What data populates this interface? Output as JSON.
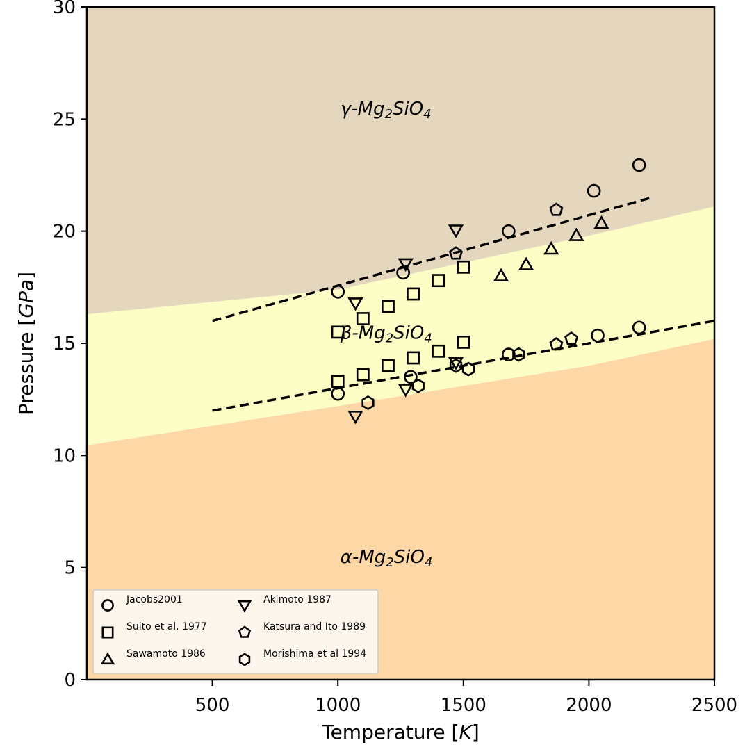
{
  "chart_data": {
    "type": "scatter",
    "xlabel_text": "Temperature [",
    "xlabel_var": "K",
    "ylabel_text": "Pressure [",
    "ylabel_var": "GPa",
    "bracket_close": "]",
    "xlim": [
      0,
      2500
    ],
    "ylim": [
      0,
      30
    ],
    "x_ticks": [
      500,
      1000,
      1500,
      2000,
      2500
    ],
    "y_ticks": [
      0,
      5,
      10,
      15,
      20,
      25,
      30
    ],
    "grid": false,
    "legend_position": "lower-left",
    "colors": {
      "alpha_region": "#fdd8a6",
      "beta_region": "#fdfdc6",
      "gamma_region": "#e4d7bd",
      "legend_bg": "#fdf6ec",
      "line": "#000000"
    },
    "regions": {
      "alpha_beta_boundary": [
        [
          0,
          10.45
        ],
        [
          1000,
          12.2
        ],
        [
          2000,
          14.0
        ],
        [
          2500,
          15.2
        ]
      ],
      "beta_gamma_boundary": [
        [
          0,
          16.3
        ],
        [
          1000,
          17.4
        ],
        [
          2000,
          19.8
        ],
        [
          2500,
          21.1
        ]
      ]
    },
    "region_labels": [
      {
        "id": "gamma",
        "greek": "γ",
        "x": 1010,
        "y": 25.2
      },
      {
        "id": "beta",
        "greek": "β",
        "x": 1010,
        "y": 15.2
      },
      {
        "id": "alpha",
        "greek": "α",
        "x": 1010,
        "y": 5.2
      }
    ],
    "formula": {
      "prefix": "-Mg",
      "sub1": "2",
      "mid": "SiO",
      "sub2": "4"
    },
    "dashed_lines": [
      {
        "x": [
          500,
          2250
        ],
        "y": [
          16.0,
          21.5
        ]
      },
      {
        "x": [
          500,
          2500
        ],
        "y": [
          12.0,
          16.0
        ]
      }
    ],
    "series": [
      {
        "name": "Jacobs2001",
        "marker": "circle",
        "x": [
          1000,
          1000,
          1260,
          1290,
          1680,
          1680,
          2020,
          2035,
          2200,
          2200
        ],
        "y": [
          17.3,
          12.75,
          18.15,
          13.5,
          20.0,
          14.5,
          21.8,
          15.35,
          22.95,
          15.7
        ]
      },
      {
        "name": "Suito et al. 1977",
        "marker": "square",
        "x": [
          1000,
          1000,
          1100,
          1100,
          1200,
          1200,
          1300,
          1300,
          1400,
          1400,
          1500,
          1500
        ],
        "y": [
          15.5,
          13.3,
          16.1,
          13.6,
          16.65,
          14.0,
          17.2,
          14.35,
          17.8,
          14.65,
          18.4,
          15.05
        ]
      },
      {
        "name": "Sawamoto 1986",
        "marker": "triangle-up",
        "x": [
          1650,
          1750,
          1850,
          1950,
          2050
        ],
        "y": [
          18.0,
          18.5,
          19.2,
          19.8,
          20.35
        ]
      },
      {
        "name": "Akimoto 1987",
        "marker": "triangle-down",
        "x": [
          1070,
          1070,
          1270,
          1270,
          1470,
          1470
        ],
        "y": [
          16.8,
          11.75,
          18.55,
          12.95,
          20.05,
          14.15
        ]
      },
      {
        "name": "Katsura and Ito 1989",
        "marker": "pentagon",
        "x": [
          1470,
          1870,
          1870,
          1930
        ],
        "y": [
          19.0,
          20.95,
          14.95,
          15.2
        ]
      },
      {
        "name": "Morishima et al 1994",
        "marker": "hexagon",
        "x": [
          1120,
          1320,
          1470,
          1520,
          1720
        ],
        "y": [
          12.35,
          13.1,
          14.0,
          13.85,
          14.5
        ]
      }
    ]
  }
}
